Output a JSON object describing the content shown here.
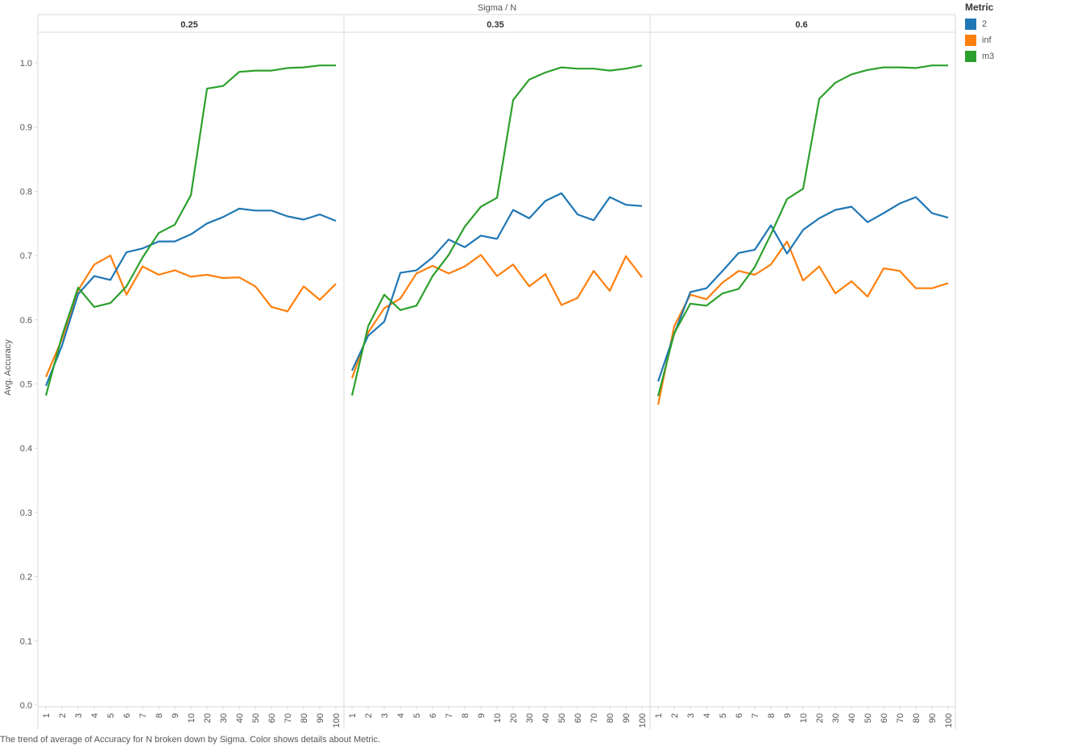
{
  "chart_data": {
    "type": "line",
    "column_header": "Sigma  /  N",
    "ylabel": "Avg. Accuracy",
    "ylim": [
      0,
      1.0
    ],
    "yticks": [
      0.0,
      0.1,
      0.2,
      0.3,
      0.4,
      0.5,
      0.6,
      0.7,
      0.8,
      0.9,
      1.0
    ],
    "categories": [
      "1",
      "2",
      "3",
      "4",
      "5",
      "6",
      "7",
      "8",
      "9",
      "10",
      "20",
      "30",
      "40",
      "50",
      "60",
      "70",
      "80",
      "90",
      "100"
    ],
    "legend": {
      "title": "Metric",
      "placement": "top-right"
    },
    "series_meta": [
      {
        "name": "2",
        "color": "#1f77b4"
      },
      {
        "name": "inf",
        "color": "#ff7f0e"
      },
      {
        "name": "m3",
        "color": "#2ca02c"
      }
    ],
    "panels": [
      {
        "label": "0.25",
        "series": [
          {
            "name": "2",
            "values": [
              0.497,
              0.56,
              0.64,
              0.668,
              0.662,
              0.705,
              0.711,
              0.722,
              0.722,
              0.733,
              0.75,
              0.76,
              0.773,
              0.77,
              0.77,
              0.761,
              0.756,
              0.764,
              0.754
            ]
          },
          {
            "name": "inf",
            "values": [
              0.511,
              0.57,
              0.646,
              0.686,
              0.7,
              0.639,
              0.683,
              0.67,
              0.677,
              0.667,
              0.67,
              0.665,
              0.666,
              0.652,
              0.62,
              0.613,
              0.652,
              0.631,
              0.656
            ]
          },
          {
            "name": "m3",
            "values": [
              0.482,
              0.575,
              0.65,
              0.62,
              0.626,
              0.652,
              0.697,
              0.735,
              0.748,
              0.794,
              0.96,
              0.964,
              0.986,
              0.988,
              0.988,
              0.992,
              0.993,
              0.996,
              0.996
            ]
          }
        ]
      },
      {
        "label": "0.35",
        "series": [
          {
            "name": "2",
            "values": [
              0.521,
              0.575,
              0.597,
              0.673,
              0.677,
              0.697,
              0.725,
              0.713,
              0.731,
              0.726,
              0.771,
              0.758,
              0.785,
              0.797,
              0.764,
              0.755,
              0.791,
              0.779,
              0.777
            ]
          },
          {
            "name": "inf",
            "values": [
              0.509,
              0.58,
              0.618,
              0.633,
              0.672,
              0.684,
              0.672,
              0.683,
              0.701,
              0.668,
              0.686,
              0.652,
              0.671,
              0.623,
              0.634,
              0.676,
              0.645,
              0.699,
              0.666
            ]
          },
          {
            "name": "m3",
            "values": [
              0.482,
              0.59,
              0.639,
              0.615,
              0.622,
              0.668,
              0.701,
              0.745,
              0.776,
              0.79,
              0.942,
              0.974,
              0.985,
              0.993,
              0.991,
              0.991,
              0.988,
              0.991,
              0.996
            ]
          }
        ]
      },
      {
        "label": "0.6",
        "series": [
          {
            "name": "2",
            "values": [
              0.504,
              0.578,
              0.643,
              0.649,
              0.676,
              0.704,
              0.709,
              0.747,
              0.703,
              0.74,
              0.758,
              0.771,
              0.776,
              0.752,
              0.766,
              0.781,
              0.791,
              0.766,
              0.759
            ]
          },
          {
            "name": "inf",
            "values": [
              0.468,
              0.59,
              0.639,
              0.632,
              0.658,
              0.676,
              0.67,
              0.686,
              0.722,
              0.661,
              0.683,
              0.641,
              0.66,
              0.636,
              0.68,
              0.676,
              0.649,
              0.649,
              0.657
            ]
          },
          {
            "name": "m3",
            "values": [
              0.481,
              0.579,
              0.625,
              0.622,
              0.641,
              0.648,
              0.682,
              0.733,
              0.788,
              0.804,
              0.944,
              0.969,
              0.982,
              0.989,
              0.993,
              0.993,
              0.992,
              0.996,
              0.996
            ]
          }
        ]
      }
    ]
  },
  "caption": "The trend of average of Accuracy for N broken down by Sigma.  Color shows details about Metric."
}
